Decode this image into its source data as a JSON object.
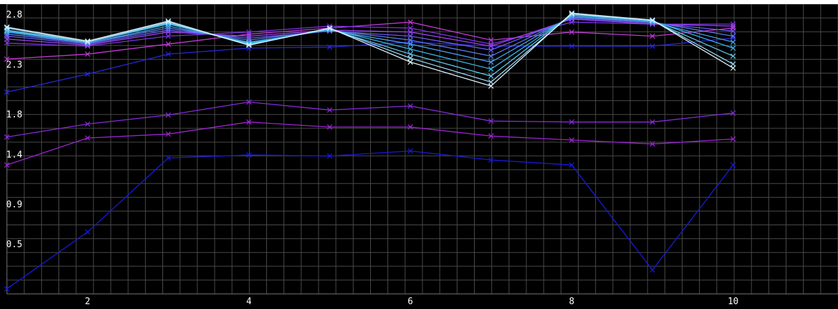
{
  "chart_data": {
    "type": "line",
    "title": "",
    "xlabel": "",
    "ylabel": "",
    "xlim": [
      1,
      11.3
    ],
    "ylim": [
      0.0,
      2.9
    ],
    "xticks": [
      2,
      4,
      6,
      8,
      10
    ],
    "yticks": [
      0.5,
      0.9,
      1.4,
      1.8,
      2.3,
      2.8
    ],
    "grid": true,
    "legend": "none",
    "x": [
      1,
      2,
      3,
      4,
      5,
      6,
      7,
      8,
      9,
      10
    ],
    "series": [
      {
        "values": [
          0.05,
          0.62,
          1.36,
          1.39,
          1.38,
          1.43,
          1.34,
          1.29,
          0.24,
          1.29
        ],
        "color": "#1a1adf"
      },
      {
        "values": [
          1.29,
          1.56,
          1.6,
          1.72,
          1.67,
          1.67,
          1.58,
          1.54,
          1.5,
          1.55
        ],
        "color": "#a024d8"
      },
      {
        "values": [
          1.57,
          1.7,
          1.79,
          1.92,
          1.84,
          1.88,
          1.73,
          1.72,
          1.72,
          1.81
        ],
        "color": "#8a2be2"
      },
      {
        "values": [
          2.02,
          2.2,
          2.4,
          2.46,
          2.47,
          2.52,
          2.48,
          2.48,
          2.48,
          2.56
        ],
        "color": "#2828e0"
      },
      {
        "values": [
          2.35,
          2.4,
          2.5,
          2.6,
          2.66,
          2.72,
          2.54,
          2.62,
          2.58,
          2.66
        ],
        "color": "#c53ad6"
      },
      {
        "values": [
          2.51,
          2.48,
          2.58,
          2.62,
          2.68,
          2.66,
          2.5,
          2.72,
          2.7,
          2.7
        ],
        "color": "#7a35e8"
      },
      {
        "values": [
          2.55,
          2.49,
          2.62,
          2.58,
          2.64,
          2.62,
          2.48,
          2.75,
          2.7,
          2.68
        ],
        "color": "#a040f0"
      },
      {
        "values": [
          2.58,
          2.5,
          2.64,
          2.56,
          2.63,
          2.58,
          2.44,
          2.76,
          2.71,
          2.63
        ],
        "color": "#6a5af5"
      },
      {
        "values": [
          2.6,
          2.51,
          2.66,
          2.54,
          2.64,
          2.54,
          2.38,
          2.77,
          2.72,
          2.58
        ],
        "color": "#5a7af0"
      },
      {
        "values": [
          2.62,
          2.51,
          2.68,
          2.52,
          2.64,
          2.5,
          2.32,
          2.78,
          2.72,
          2.52
        ],
        "color": "#4aa0f0"
      },
      {
        "values": [
          2.63,
          2.52,
          2.7,
          2.51,
          2.65,
          2.45,
          2.25,
          2.79,
          2.73,
          2.46
        ],
        "color": "#39b8e8"
      },
      {
        "values": [
          2.64,
          2.52,
          2.71,
          2.5,
          2.65,
          2.4,
          2.18,
          2.8,
          2.73,
          2.38
        ],
        "color": "#60c8f0"
      },
      {
        "values": [
          2.66,
          2.52,
          2.72,
          2.49,
          2.66,
          2.36,
          2.12,
          2.8,
          2.74,
          2.3
        ],
        "color": "#9ad8f5"
      },
      {
        "values": [
          2.67,
          2.53,
          2.73,
          2.49,
          2.66,
          2.32,
          2.08,
          2.81,
          2.74,
          2.26
        ],
        "color": "#dff2fb"
      }
    ]
  }
}
